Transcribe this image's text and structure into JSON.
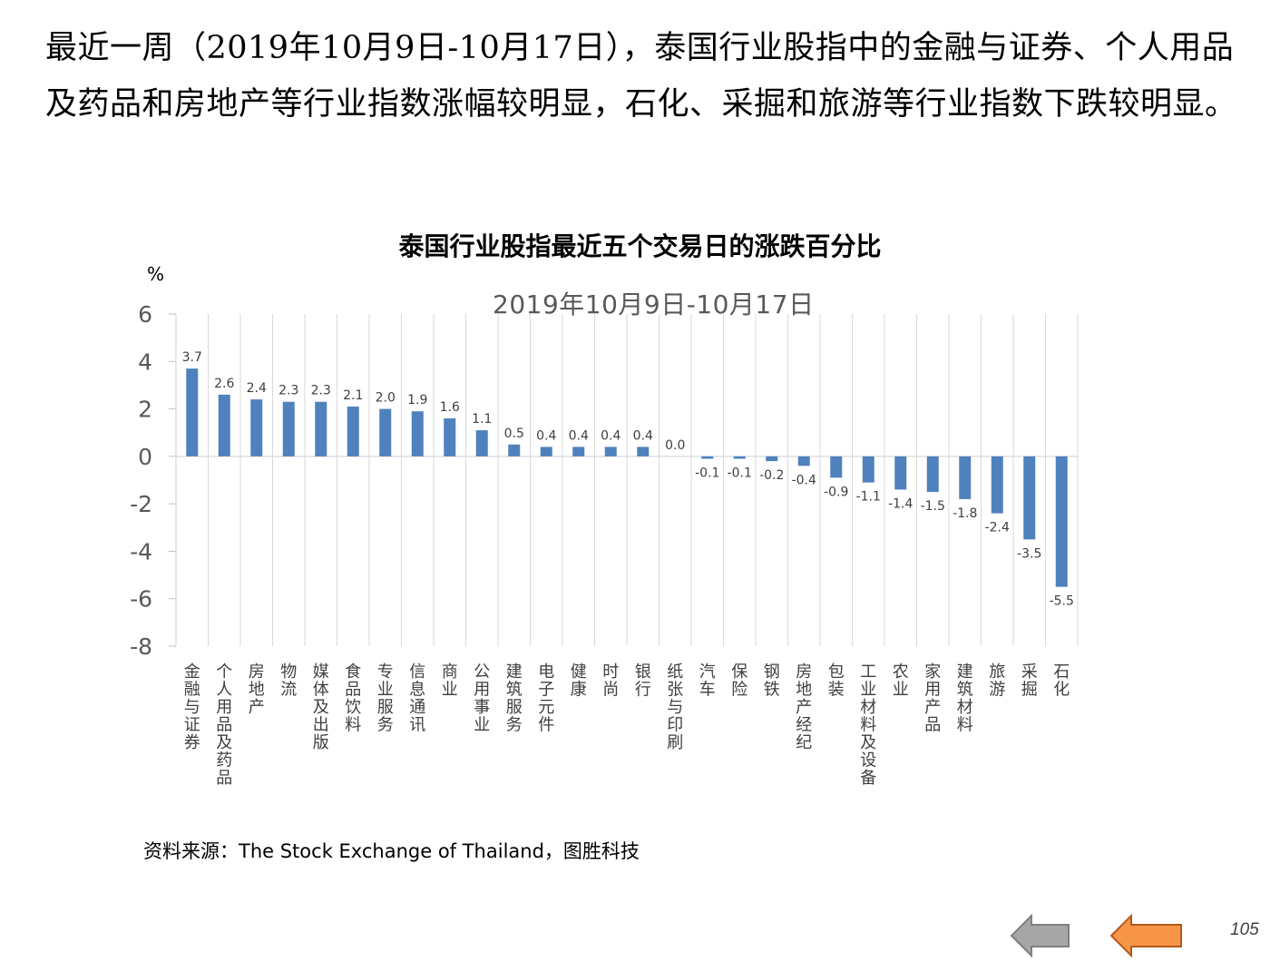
{
  "intro_text": "最近一周（2019年10月9日-10月17日），泰国行业股指中的金融与证券、个人用品及药品和房地产等行业指数涨幅较明显，石化、采掘和旅游等行业指数下跌较明显。",
  "page_number": "105",
  "colors": {
    "bar": "#4F81BD",
    "nav_back": "#A6A6A6",
    "nav_forward": "#F79646"
  },
  "icons": {
    "back": "left-arrow-icon",
    "forward": "left-arrow-icon"
  },
  "chart_data": {
    "type": "bar",
    "title": "泰国行业股指最近五个交易日的涨跌百分比",
    "subtitle": "2019年10月9日-10月17日",
    "ylabel": "%",
    "xlabel": "",
    "ylim": [
      -8,
      6
    ],
    "yticks": [
      6,
      4,
      2,
      0,
      -2,
      -4,
      -6,
      -8
    ],
    "grid": "vertical",
    "legend": "none",
    "categories": [
      "金融与证券",
      "个人用品及药品",
      "房地产",
      "物流",
      "媒体及出版",
      "食品饮料",
      "专业服务",
      "信息通讯",
      "商业",
      "公用事业",
      "建筑服务",
      "电子元件",
      "健康",
      "时尚",
      "银行",
      "纸张与印刷",
      "汽车",
      "保险",
      "钢铁",
      "房地产经纪",
      "包装",
      "工业材料及设备",
      "农业",
      "家用产品",
      "建筑材料",
      "旅游",
      "采掘",
      "石化"
    ],
    "values": [
      3.7,
      2.6,
      2.4,
      2.3,
      2.3,
      2.1,
      2.0,
      1.9,
      1.6,
      1.1,
      0.5,
      0.4,
      0.4,
      0.4,
      0.4,
      0.0,
      -0.1,
      -0.1,
      -0.2,
      -0.4,
      -0.9,
      -1.1,
      -1.4,
      -1.5,
      -1.8,
      -2.4,
      -3.5,
      -5.5
    ],
    "labels": [
      "3.7",
      "2.6",
      "2.4",
      "2.3",
      "2.3",
      "2.1",
      "2.0",
      "1.9",
      "1.6",
      "1.1",
      "0.5",
      "0.4",
      "0.4",
      "0.4",
      "0.4",
      "0.0",
      "-0.1",
      "-0.1",
      "-0.2",
      "-0.4",
      "-0.9",
      "-1.1",
      "-1.4",
      "-1.5",
      "-1.8",
      "-2.4",
      "-3.5",
      "-5.5"
    ]
  },
  "source_text": "资料来源：The Stock Exchange of Thailand，图胜科技"
}
